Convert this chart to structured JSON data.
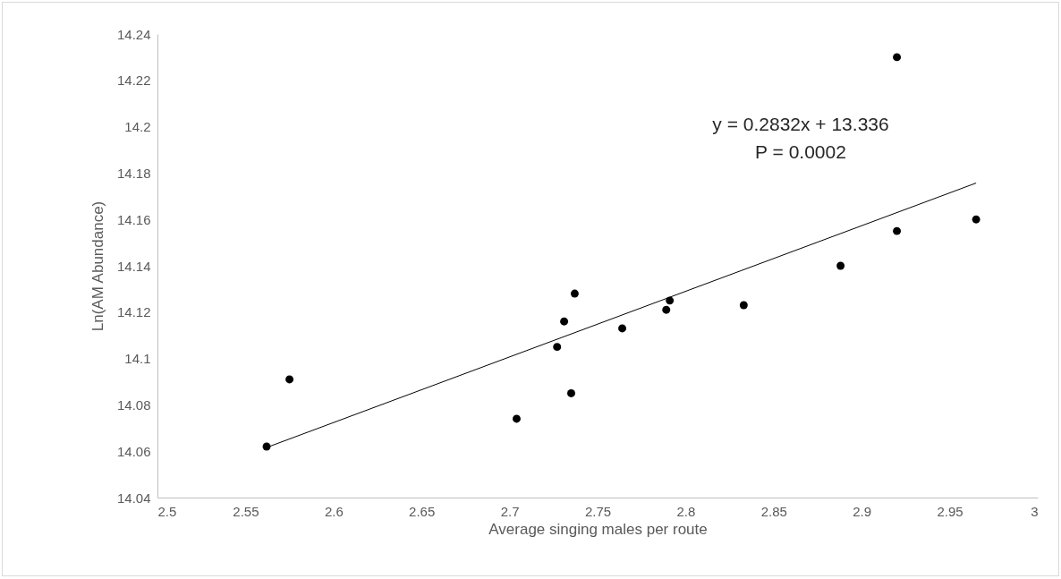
{
  "chart_data": {
    "type": "scatter",
    "xlabel": "Average singing males per route",
    "ylabel": "Ln(AM Abundance)",
    "xlim": [
      2.5,
      3
    ],
    "xticks": [
      2.5,
      2.55,
      2.6,
      2.65,
      2.7,
      2.75,
      2.8,
      2.85,
      2.9,
      2.95,
      3
    ],
    "ylim": [
      14.04,
      14.24
    ],
    "yticks": [
      14.04,
      14.06,
      14.08,
      14.1,
      14.12,
      14.14,
      14.16,
      14.18,
      14.2,
      14.22,
      14.24
    ],
    "grid": false,
    "series": [
      {
        "color": "#000000",
        "marker": "circle",
        "x": [
          2.562,
          2.575,
          2.704,
          2.727,
          2.731,
          2.735,
          2.737,
          2.764,
          2.789,
          2.791,
          2.833,
          2.888,
          2.92,
          2.92,
          2.965
        ],
        "values": [
          14.062,
          14.091,
          14.074,
          14.105,
          14.116,
          14.085,
          14.128,
          14.113,
          14.121,
          14.125,
          14.123,
          14.14,
          14.23,
          14.155,
          14.16
        ]
      },
      {
        "type": "line",
        "color": "#000000",
        "line_style": "solid",
        "marker": "none",
        "x": [
          2.562,
          2.965
        ],
        "values": [
          14.0616,
          14.1757
        ]
      }
    ],
    "annotations": [
      "y = 0.2832x + 13.336",
      "P = 0.0002"
    ]
  }
}
